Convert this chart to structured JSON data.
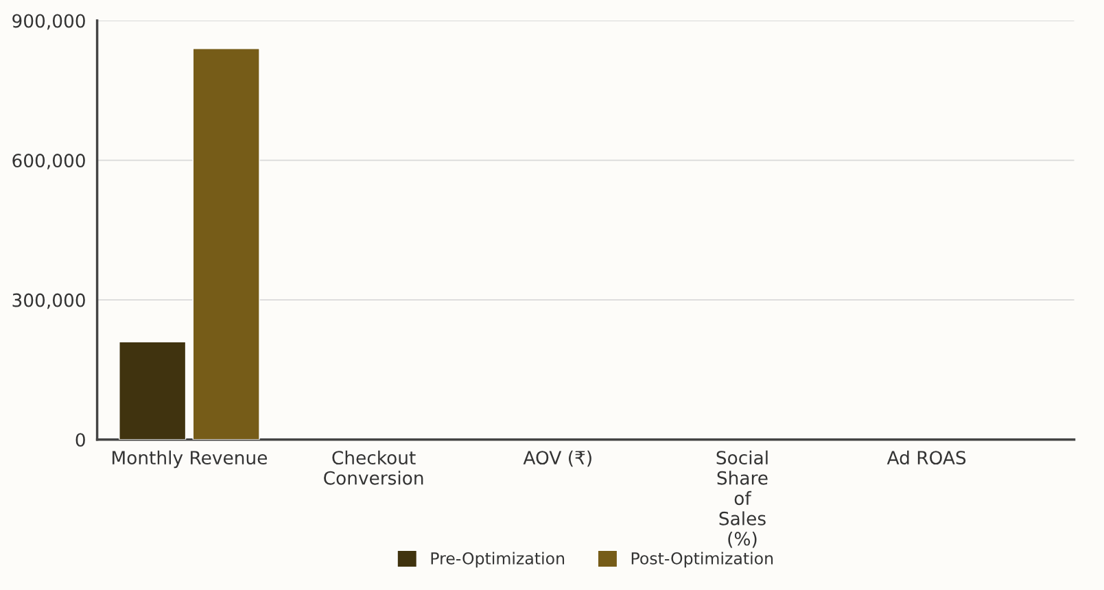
{
  "chart_data": {
    "type": "bar",
    "categories": [
      "Monthly Revenue",
      "Checkout Conversion",
      "AOV (₹)",
      "Social Share of Sales (%)",
      "Ad ROAS"
    ],
    "series": [
      {
        "name": "Pre-Optimization",
        "color": "#40330f",
        "values": [
          210000,
          null,
          null,
          null,
          null
        ]
      },
      {
        "name": "Post-Optimization",
        "color": "#765c18",
        "values": [
          840000,
          null,
          null,
          null,
          null
        ]
      }
    ],
    "ylim": [
      0,
      900000
    ],
    "yticks": [
      {
        "value": 0,
        "label": "0"
      },
      {
        "value": 300000,
        "label": "300,000"
      },
      {
        "value": 600000,
        "label": "600,000"
      },
      {
        "value": 900000,
        "label": "900,000"
      }
    ],
    "grid": "y",
    "legend": "bottom"
  }
}
